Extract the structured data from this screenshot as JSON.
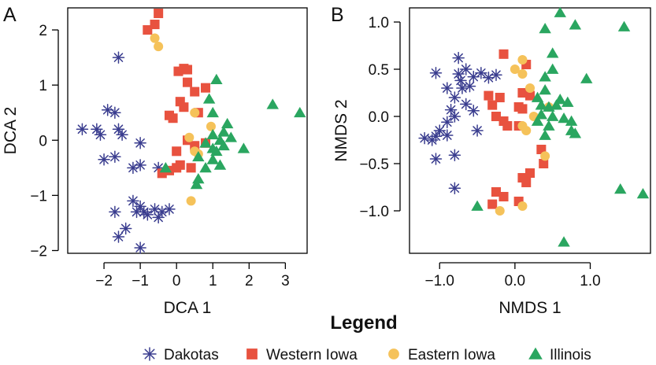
{
  "legend": {
    "title": "Legend",
    "entries": [
      {
        "label": "Dakotas",
        "series": "Dakotas"
      },
      {
        "label": "Western Iowa",
        "series": "Western Iowa"
      },
      {
        "label": "Eastern Iowa",
        "series": "Eastern Iowa"
      },
      {
        "label": "Illinois",
        "series": "Illinois"
      }
    ]
  },
  "styles": {
    "Dakotas": {
      "color": "#3a3d8f",
      "marker": "asterisk"
    },
    "Western Iowa": {
      "color": "#e8523f",
      "marker": "square"
    },
    "Eastern Iowa": {
      "color": "#f5c25a",
      "marker": "circle"
    },
    "Illinois": {
      "color": "#2aa660",
      "marker": "triangle"
    }
  },
  "chart_data": [
    {
      "type": "scatter",
      "panel": "A",
      "xlabel": "DCA 1",
      "ylabel": "DCA 2",
      "xlim": [
        -3,
        3.6
      ],
      "ylim": [
        -2.05,
        2.4
      ],
      "xticks": [
        -2,
        -1,
        0,
        1,
        2,
        3
      ],
      "yticks": [
        -2,
        -1,
        0,
        1,
        2
      ],
      "series": [
        {
          "name": "Dakotas",
          "points": [
            [
              -1.6,
              1.5
            ],
            [
              -2.6,
              0.2
            ],
            [
              -2.2,
              0.2
            ],
            [
              -2.1,
              0.1
            ],
            [
              -1.9,
              0.55
            ],
            [
              -1.7,
              0.5
            ],
            [
              -1.6,
              0.2
            ],
            [
              -1.5,
              0.1
            ],
            [
              -1.0,
              -0.05
            ],
            [
              -2.0,
              -0.35
            ],
            [
              -1.7,
              -0.3
            ],
            [
              -1.2,
              -0.5
            ],
            [
              -1.0,
              -0.45
            ],
            [
              -0.5,
              -0.5
            ],
            [
              -1.2,
              -1.1
            ],
            [
              -1.0,
              -1.2
            ],
            [
              -1.1,
              -1.3
            ],
            [
              -0.9,
              -1.3
            ],
            [
              -0.8,
              -1.35
            ],
            [
              -0.6,
              -1.25
            ],
            [
              -0.5,
              -1.4
            ],
            [
              -0.4,
              -1.3
            ],
            [
              -0.2,
              -1.25
            ],
            [
              -1.7,
              -1.3
            ],
            [
              -1.4,
              -1.6
            ],
            [
              -1.6,
              -1.75
            ],
            [
              -1.0,
              -1.95
            ]
          ]
        },
        {
          "name": "Western Iowa",
          "points": [
            [
              -0.5,
              2.3
            ],
            [
              -0.8,
              2.0
            ],
            [
              -0.6,
              2.1
            ],
            [
              0.05,
              1.25
            ],
            [
              0.2,
              1.3
            ],
            [
              0.3,
              1.28
            ],
            [
              0.3,
              1.05
            ],
            [
              0.8,
              0.95
            ],
            [
              0.5,
              0.88
            ],
            [
              0.2,
              0.6
            ],
            [
              0.1,
              0.7
            ],
            [
              -0.1,
              0.4
            ],
            [
              -0.2,
              0.45
            ],
            [
              0.6,
              0.5
            ],
            [
              0.0,
              -0.2
            ],
            [
              0.3,
              0.0
            ],
            [
              0.5,
              -0.1
            ],
            [
              0.8,
              -0.05
            ],
            [
              0.1,
              -0.45
            ],
            [
              0.0,
              -0.5
            ],
            [
              -0.2,
              -0.55
            ],
            [
              -0.4,
              -0.6
            ],
            [
              0.4,
              -0.5
            ]
          ]
        },
        {
          "name": "Eastern Iowa",
          "points": [
            [
              -0.6,
              1.85
            ],
            [
              -0.5,
              1.7
            ],
            [
              0.5,
              0.5
            ],
            [
              0.95,
              0.25
            ],
            [
              0.35,
              0.05
            ],
            [
              0.5,
              -0.2
            ],
            [
              0.6,
              -0.25
            ],
            [
              0.4,
              -1.1
            ]
          ]
        },
        {
          "name": "Illinois",
          "points": [
            [
              1.1,
              1.1
            ],
            [
              0.9,
              0.75
            ],
            [
              1.0,
              0.5
            ],
            [
              2.65,
              0.65
            ],
            [
              3.4,
              0.5
            ],
            [
              1.4,
              0.3
            ],
            [
              1.3,
              0.15
            ],
            [
              1.5,
              0.05
            ],
            [
              1.0,
              0.1
            ],
            [
              1.2,
              0.0
            ],
            [
              0.8,
              -0.05
            ],
            [
              1.0,
              -0.15
            ],
            [
              1.1,
              -0.2
            ],
            [
              1.3,
              -0.1
            ],
            [
              1.85,
              -0.15
            ],
            [
              0.6,
              -0.3
            ],
            [
              1.0,
              -0.35
            ],
            [
              1.2,
              -0.45
            ],
            [
              0.8,
              -0.5
            ],
            [
              0.6,
              -0.7
            ],
            [
              0.55,
              -0.8
            ],
            [
              -0.3,
              -0.5
            ]
          ]
        }
      ]
    },
    {
      "type": "scatter",
      "panel": "B",
      "xlabel": "NMDS 1",
      "ylabel": "NMDS 2",
      "xlim": [
        -1.4,
        1.8
      ],
      "ylim": [
        -1.45,
        1.15
      ],
      "xticks": [
        -1.0,
        0.0,
        1.0
      ],
      "xticklabels": [
        "−1.0",
        "0.0",
        "1.0"
      ],
      "yticks": [
        -1.0,
        -0.5,
        0.0,
        0.5,
        1.0
      ],
      "yticklabels": [
        "−1.0",
        "−0.5",
        "0.0",
        "0.5",
        "1.0"
      ],
      "series": [
        {
          "name": "Dakotas",
          "points": [
            [
              -0.75,
              0.62
            ],
            [
              -1.05,
              0.46
            ],
            [
              -0.75,
              0.45
            ],
            [
              -0.65,
              0.5
            ],
            [
              -0.72,
              0.38
            ],
            [
              -0.55,
              0.42
            ],
            [
              -0.45,
              0.46
            ],
            [
              -0.35,
              0.41
            ],
            [
              -0.25,
              0.44
            ],
            [
              -0.6,
              0.32
            ],
            [
              -0.7,
              0.3
            ],
            [
              -0.9,
              0.3
            ],
            [
              -0.8,
              0.2
            ],
            [
              -0.65,
              0.13
            ],
            [
              -0.85,
              0.07
            ],
            [
              -0.55,
              0.06
            ],
            [
              -0.8,
              0.0
            ],
            [
              -0.9,
              -0.06
            ],
            [
              -1.0,
              -0.15
            ],
            [
              -0.9,
              -0.2
            ],
            [
              -1.05,
              -0.21
            ],
            [
              -1.1,
              -0.25
            ],
            [
              -1.2,
              -0.23
            ],
            [
              -0.5,
              -0.15
            ],
            [
              -0.8,
              -0.41
            ],
            [
              -1.05,
              -0.45
            ],
            [
              -0.8,
              -0.76
            ]
          ]
        },
        {
          "name": "Western Iowa",
          "points": [
            [
              -0.15,
              0.66
            ],
            [
              0.15,
              0.55
            ],
            [
              0.1,
              0.25
            ],
            [
              0.2,
              0.22
            ],
            [
              -0.35,
              0.22
            ],
            [
              -0.2,
              0.2
            ],
            [
              -0.25,
              0.0
            ],
            [
              -0.3,
              0.12
            ],
            [
              0.05,
              0.1
            ],
            [
              0.1,
              0.08
            ],
            [
              -0.15,
              -0.05
            ],
            [
              -0.1,
              -0.1
            ],
            [
              0.05,
              -0.1
            ],
            [
              0.35,
              -0.35
            ],
            [
              0.38,
              -0.5
            ],
            [
              0.2,
              -0.6
            ],
            [
              0.1,
              -0.65
            ],
            [
              0.15,
              -0.7
            ],
            [
              -0.25,
              -0.8
            ],
            [
              -0.15,
              -0.85
            ],
            [
              0.05,
              -0.9
            ],
            [
              -0.3,
              -0.93
            ]
          ]
        },
        {
          "name": "Eastern Iowa",
          "points": [
            [
              0.1,
              0.6
            ],
            [
              0.0,
              0.5
            ],
            [
              0.1,
              0.45
            ],
            [
              0.2,
              0.3
            ],
            [
              0.45,
              0.1
            ],
            [
              0.25,
              0.0
            ],
            [
              0.1,
              -0.1
            ],
            [
              0.15,
              -0.15
            ],
            [
              0.4,
              -0.42
            ],
            [
              0.1,
              -0.95
            ],
            [
              -0.2,
              -1.0
            ]
          ]
        },
        {
          "name": "Illinois",
          "points": [
            [
              0.6,
              1.1
            ],
            [
              0.4,
              0.93
            ],
            [
              0.8,
              0.97
            ],
            [
              1.45,
              0.95
            ],
            [
              0.5,
              0.67
            ],
            [
              0.5,
              0.5
            ],
            [
              0.4,
              0.42
            ],
            [
              0.95,
              0.4
            ],
            [
              0.4,
              0.28
            ],
            [
              0.3,
              0.2
            ],
            [
              0.6,
              0.18
            ],
            [
              0.35,
              0.12
            ],
            [
              0.45,
              0.1
            ],
            [
              0.55,
              0.12
            ],
            [
              0.7,
              0.15
            ],
            [
              0.35,
              0.02
            ],
            [
              0.5,
              0.0
            ],
            [
              0.65,
              -0.02
            ],
            [
              0.75,
              -0.05
            ],
            [
              0.3,
              -0.05
            ],
            [
              0.45,
              -0.1
            ],
            [
              0.75,
              -0.15
            ],
            [
              0.8,
              -0.18
            ],
            [
              0.4,
              -0.2
            ],
            [
              -0.5,
              -0.95
            ],
            [
              1.4,
              -0.77
            ],
            [
              1.7,
              -0.82
            ],
            [
              0.65,
              -1.33
            ]
          ]
        }
      ]
    }
  ]
}
